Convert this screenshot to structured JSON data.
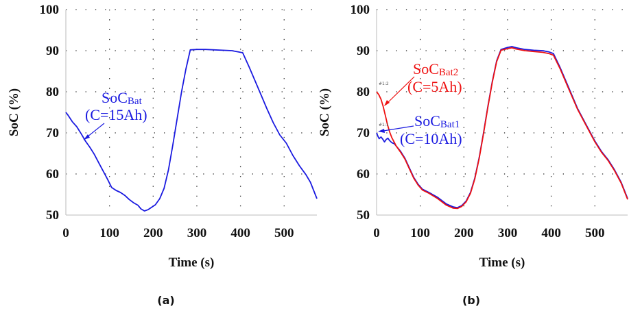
{
  "chart_data": [
    {
      "panel": "(a)",
      "type": "line",
      "xlabel": "Time (s)",
      "ylabel": "SoC (%)",
      "xlim": [
        0,
        575
      ],
      "ylim": [
        50,
        100
      ],
      "xticks": [
        "0",
        "100",
        "200",
        "300",
        "400",
        "500"
      ],
      "yticks": [
        "50",
        "60",
        "70",
        "80",
        "90",
        "100"
      ],
      "grid": true,
      "series": [
        {
          "color": "#1a1ae0",
          "x": [
            0,
            5,
            15,
            25,
            35,
            45,
            55,
            65,
            75,
            85,
            95,
            105,
            115,
            125,
            135,
            145,
            155,
            165,
            172,
            180,
            188,
            195,
            205,
            215,
            225,
            235,
            245,
            255,
            265,
            275,
            285,
            300,
            320,
            340,
            360,
            380,
            395,
            405,
            420,
            440,
            460,
            475,
            490,
            505,
            520,
            535,
            550,
            560,
            575
          ],
          "y": [
            75,
            74.3,
            72.7,
            71.5,
            69.8,
            68.0,
            66.5,
            64.8,
            62.8,
            60.8,
            58.8,
            56.7,
            56.0,
            55.5,
            54.8,
            53.8,
            53.0,
            52.4,
            51.5,
            51.0,
            51.3,
            51.8,
            52.5,
            54.0,
            56.5,
            61.0,
            67.0,
            73.5,
            80.0,
            85.5,
            90.2,
            90.3,
            90.3,
            90.2,
            90.1,
            90.0,
            89.7,
            89.5,
            86.0,
            81.0,
            76.0,
            72.5,
            69.5,
            67.5,
            64.5,
            62.0,
            59.8,
            58.0,
            54.0
          ]
        }
      ],
      "annotations": [
        {
          "text": "SoC",
          "sub": "Bat",
          "line2": "(C=15Ah)",
          "color": "#1a1ae0"
        }
      ]
    },
    {
      "panel": "(b)",
      "type": "line",
      "xlabel": "Time (s)",
      "ylabel": "SoC (%)",
      "xlim": [
        0,
        575
      ],
      "ylim": [
        50,
        100
      ],
      "xticks": [
        "0",
        "100",
        "200",
        "300",
        "400",
        "500"
      ],
      "yticks": [
        "50",
        "60",
        "70",
        "80",
        "90",
        "100"
      ],
      "grid": true,
      "series": [
        {
          "name": "SoC Bat1 (C=10Ah)",
          "color": "#1a1ae0",
          "x": [
            0,
            3,
            6,
            10,
            14,
            18,
            22,
            26,
            30,
            35,
            40,
            45,
            55,
            65,
            75,
            85,
            95,
            105,
            120,
            140,
            160,
            175,
            185,
            195,
            205,
            215,
            225,
            235,
            245,
            255,
            265,
            275,
            285,
            300,
            310,
            320,
            340,
            360,
            380,
            395,
            405,
            420,
            440,
            460,
            480,
            500,
            515,
            530,
            545,
            560,
            575
          ],
          "y": [
            70,
            69.2,
            68.6,
            69.0,
            68.5,
            67.8,
            68.4,
            68.7,
            68.1,
            67.6,
            67.4,
            66.8,
            65.5,
            63.8,
            61.5,
            59.2,
            57.5,
            56.3,
            55.5,
            54.3,
            52.7,
            52.0,
            51.8,
            52.3,
            53.4,
            55.5,
            59.0,
            64.0,
            70.0,
            76.5,
            82.5,
            87.5,
            90.3,
            90.8,
            91.0,
            90.7,
            90.3,
            90.1,
            90.0,
            89.7,
            89.3,
            86.0,
            81.0,
            76.0,
            72.0,
            68.0,
            65.5,
            63.5,
            61.0,
            58.0,
            54.0
          ]
        },
        {
          "name": "SoC Bat2 (C=5Ah)",
          "color": "#ee1111",
          "x": [
            0,
            5,
            10,
            15,
            20,
            25,
            30,
            35,
            40,
            45,
            55,
            65,
            75,
            85,
            95,
            105,
            120,
            140,
            160,
            175,
            185,
            195,
            205,
            215,
            225,
            235,
            245,
            255,
            265,
            275,
            285,
            300,
            310,
            320,
            340,
            360,
            380,
            395,
            405,
            420,
            440,
            460,
            480,
            500,
            515,
            530,
            545,
            560,
            575
          ],
          "y": [
            80,
            79.3,
            78.2,
            76.5,
            74.3,
            72.0,
            70.2,
            68.8,
            67.8,
            66.8,
            65.3,
            63.6,
            61.3,
            59.0,
            57.3,
            56.1,
            55.3,
            54.0,
            52.4,
            51.7,
            51.6,
            52.1,
            53.2,
            55.3,
            58.8,
            63.8,
            69.8,
            76.3,
            82.3,
            87.3,
            90.1,
            90.5,
            90.7,
            90.4,
            90.0,
            89.8,
            89.6,
            89.3,
            88.9,
            85.7,
            80.7,
            75.8,
            71.8,
            67.8,
            65.3,
            63.3,
            60.8,
            57.8,
            53.8
          ]
        }
      ],
      "annotations": [
        {
          "text": "SoC",
          "sub": "Bat2",
          "line2": "(C=5Ah)",
          "color": "#ee1111"
        },
        {
          "text": "SoC",
          "sub": "Bat1",
          "line2": "(C=10Ah)",
          "color": "#1a1ae0"
        }
      ],
      "marker_labels": [
        "#1:2",
        "#1:1"
      ]
    }
  ]
}
